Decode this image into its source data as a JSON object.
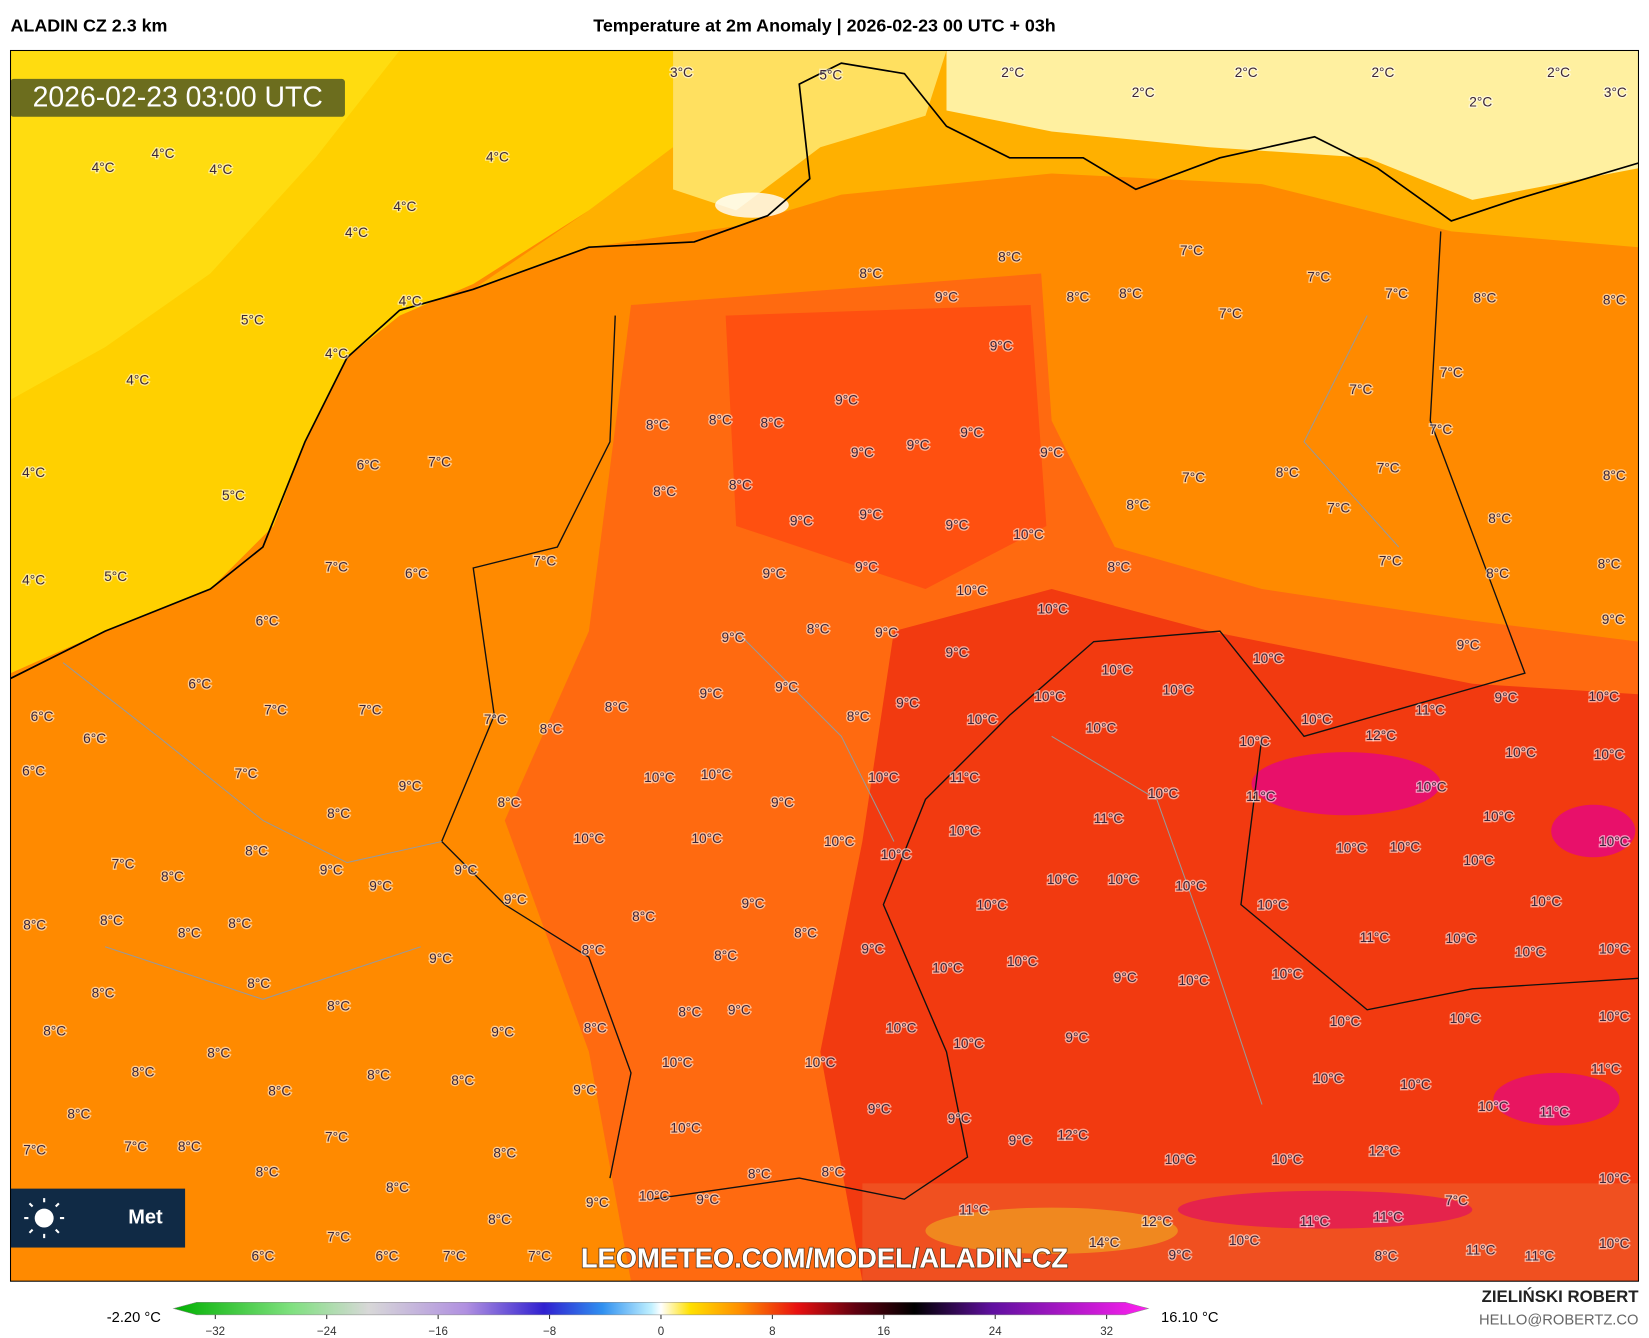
{
  "header": {
    "model": "ALADIN CZ 2.3 km",
    "title": "Temperature at 2m Anomaly | 2026-02-23 00 UTC + 03h"
  },
  "map": {
    "valid_time": "2026-02-23 03:00 UTC",
    "watermark": "LEOMETEO.COM/MODEL/ALADIN-CZ",
    "logo_text": "Met",
    "labels": [
      [
        "3°C",
        "5°C",
        "2°C",
        "2°C",
        "2°C",
        "2°C",
        "2°C",
        "2°C",
        "3°C"
      ],
      [
        "4°C",
        "4°C",
        "4°C",
        "4°C",
        "4°C",
        "4°C",
        "4°C",
        "5°C",
        "4°C",
        "4°C",
        "4°C",
        "5°C",
        "4°C",
        "5°C"
      ],
      [
        "8°C",
        "7°C",
        "8°C",
        "9°C",
        "8°C",
        "8°C",
        "7°C",
        "7°C",
        "7°C",
        "8°C",
        "8°C"
      ],
      [
        "9°C",
        "7°C",
        "7°C",
        "7°C",
        "9°C",
        "8°C",
        "8°C",
        "8°C",
        "9°C",
        "9°C",
        "9°C",
        "9°C"
      ],
      [
        "6°C",
        "7°C",
        "8°C",
        "8°C",
        "7°C",
        "8°C",
        "7°C",
        "8°C",
        "8°C",
        "7°C"
      ],
      [
        "9°C",
        "9°C",
        "9°C",
        "10°C",
        "8°C",
        "7°C",
        "6°C",
        "7°C",
        "9°C",
        "9°C",
        "8°C",
        "7°C",
        "8°C",
        "8°C"
      ],
      [
        "10°C",
        "10°C",
        "9°C",
        "6°C",
        "8°C",
        "9°C",
        "9°C",
        "9°C",
        "9°C",
        "10°C",
        "10°C"
      ],
      [
        "6°C",
        "6°C",
        "6°C",
        "7°C",
        "7°C",
        "8°C",
        "9°C",
        "9°C",
        "9°C",
        "10°C",
        "10°C",
        "9°C",
        "10°C"
      ],
      [
        "7°C",
        "8°C",
        "8°C",
        "10°C",
        "10°C",
        "10°C",
        "11°C",
        "12°C",
        "10°C"
      ],
      [
        "6°C",
        "7°C",
        "9°C",
        "10°C",
        "10°C",
        "10°C",
        "11°C",
        "10°C",
        "11°C",
        "10°C",
        "10°C",
        "10°C",
        "8°C",
        "9°C",
        "11°C",
        "10°C",
        "8°C"
      ],
      [
        "10°C",
        "10°C",
        "10°C",
        "10°C",
        "10°C",
        "10°C",
        "10°C",
        "8°C",
        "7°C",
        "8°C",
        "9°C",
        "9°C",
        "10°C",
        "10°C",
        "10°C",
        "10°C",
        "10°C",
        "9°C"
      ],
      [
        "9°C",
        "9°C",
        "10°C",
        "10°C",
        "10°C",
        "8°C",
        "8°C",
        "8°C",
        "8°C",
        "8°C",
        "8°C",
        "11°C",
        "10°C",
        "10°C",
        "10°C"
      ],
      [
        "8°C",
        "8°C",
        "9°C",
        "9°C",
        "10°C",
        "10°C",
        "9°C",
        "10°C",
        "10°C",
        "8°C",
        "8°C",
        "8°C",
        "8°C",
        "9°C",
        "10°C",
        "10°C",
        "10°C"
      ],
      [
        "8°C",
        "9°C",
        "8°C",
        "10°C",
        "9°C",
        "10°C",
        "8°C",
        "10°C",
        "10°C",
        "11°C",
        "8°C",
        "8°C",
        "8°C",
        "8°C",
        "9°C",
        "10°C",
        "10°C"
      ],
      [
        "9°C",
        "10°C",
        "11°C",
        "8°C",
        "10°C",
        "9°C",
        "12°C",
        "9°C",
        "7°C",
        "7°C",
        "8°C",
        "7°C",
        "8°C",
        "12°C",
        "10°C",
        "10°C"
      ],
      [
        "8°C",
        "8°C",
        "8°C",
        "10°C",
        "8°C",
        "9°C",
        "10°C",
        "9°C",
        "11°C",
        "7°C",
        "8°C",
        "12°C",
        "11°C",
        "11°C"
      ],
      [
        "7°C",
        "14°C",
        "10°C",
        "10°C",
        "6°C",
        "6°C",
        "7°C",
        "7°C",
        "9°C",
        "8°C",
        "11°C",
        "11°C"
      ]
    ]
  },
  "colorbar": {
    "min_label": "-2.20 °C",
    "max_label": "16.10 °C",
    "lim": [
      -35,
      35
    ],
    "ticks": [
      {
        "value": -32,
        "label": "−32"
      },
      {
        "value": -24,
        "label": "−24"
      },
      {
        "value": -16,
        "label": "−16"
      },
      {
        "value": -8,
        "label": "−8"
      },
      0,
      8,
      16,
      24,
      32
    ]
  },
  "credits": {
    "author": "ZIELIŃSKI ROBERT",
    "contact": "HELLO@ROBERTZ.CO"
  }
}
